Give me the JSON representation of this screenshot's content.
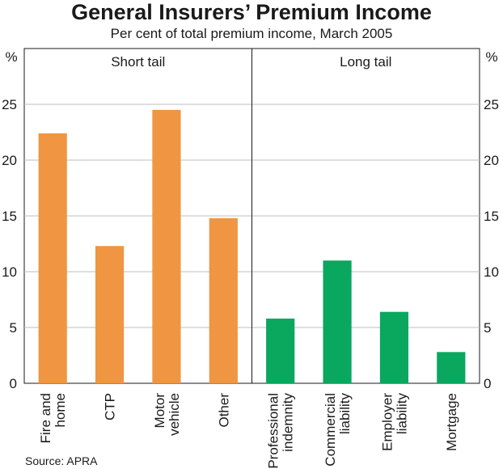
{
  "chart_data": {
    "type": "bar",
    "title": "General Insurers’ Premium Income",
    "subtitle": "Per cent of total premium income, March 2005",
    "unit_left": "%",
    "unit_right": "%",
    "ylim": [
      0,
      30
    ],
    "yticks": [
      0,
      5,
      10,
      15,
      20,
      25
    ],
    "grid": true,
    "source": "Source: APRA",
    "panels": [
      {
        "label": "Short tail",
        "color": "#f09541",
        "categories": [
          {
            "lines": [
              "Fire and",
              "home"
            ],
            "value": 22.4
          },
          {
            "lines": [
              "CTP"
            ],
            "value": 12.3
          },
          {
            "lines": [
              "Motor",
              "vehicle"
            ],
            "value": 24.5
          },
          {
            "lines": [
              "Other"
            ],
            "value": 14.8
          }
        ]
      },
      {
        "label": "Long tail",
        "color": "#0aa75f",
        "categories": [
          {
            "lines": [
              "Professional",
              "indemnity"
            ],
            "value": 5.8
          },
          {
            "lines": [
              "Commercial",
              "liability"
            ],
            "value": 11.0
          },
          {
            "lines": [
              "Employer",
              "liability"
            ],
            "value": 6.4
          },
          {
            "lines": [
              "Mortgage"
            ],
            "value": 2.8
          }
        ]
      }
    ]
  }
}
